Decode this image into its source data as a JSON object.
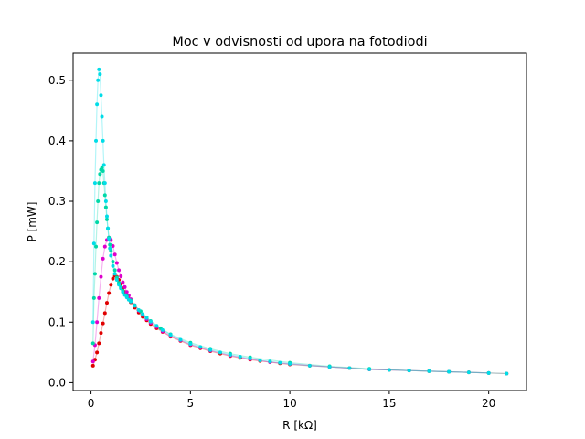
{
  "chart_data": {
    "type": "scatter",
    "title": "Moc v odvisnosti od upora na fotodiodi",
    "xlabel": "R [kΩ]",
    "ylabel": "P [mW]",
    "xlim": [
      -0.9,
      21.9
    ],
    "ylim": [
      -0.013,
      0.545
    ],
    "xticks": [
      0,
      5,
      10,
      15,
      20
    ],
    "xtick_labels": [
      "0",
      "5",
      "10",
      "15",
      "20"
    ],
    "yticks": [
      0.0,
      0.1,
      0.2,
      0.3,
      0.4,
      0.5
    ],
    "ytick_labels": [
      "0.0",
      "0.1",
      "0.2",
      "0.3",
      "0.4",
      "0.5"
    ],
    "grid": false,
    "legend": "none",
    "series": [
      {
        "color": "#e00000",
        "x": [
          0.1,
          0.2,
          0.3,
          0.4,
          0.5,
          0.6,
          0.7,
          0.8,
          0.9,
          1.0,
          1.1,
          1.2,
          1.3,
          1.4,
          1.5,
          1.6,
          1.7,
          1.8,
          1.9,
          2.0,
          2.2,
          2.4,
          2.6,
          2.8,
          3.0,
          3.3,
          3.6,
          4.0,
          4.5,
          5.0,
          5.5,
          6.0,
          6.5,
          7.0,
          7.5,
          8.0,
          8.5,
          9.0,
          9.5,
          10.0,
          11.0,
          12.0,
          13.0,
          14.0,
          15.0,
          16.0,
          17.0,
          18.0,
          19.0,
          20.0,
          20.9
        ],
        "y": [
          0.028,
          0.038,
          0.05,
          0.065,
          0.082,
          0.098,
          0.115,
          0.132,
          0.148,
          0.162,
          0.172,
          0.177,
          0.175,
          0.17,
          0.163,
          0.156,
          0.15,
          0.144,
          0.138,
          0.133,
          0.124,
          0.116,
          0.109,
          0.103,
          0.097,
          0.09,
          0.084,
          0.076,
          0.069,
          0.062,
          0.057,
          0.052,
          0.048,
          0.044,
          0.041,
          0.038,
          0.036,
          0.034,
          0.032,
          0.03,
          0.028,
          0.026,
          0.024,
          0.022,
          0.021,
          0.02,
          0.019,
          0.018,
          0.017,
          0.016,
          0.015
        ]
      },
      {
        "color": "#dd00cc",
        "x": [
          0.1,
          0.2,
          0.3,
          0.4,
          0.5,
          0.6,
          0.7,
          0.8,
          0.9,
          1.0,
          1.1,
          1.2,
          1.3,
          1.4,
          1.5,
          1.6,
          1.7,
          1.8,
          1.9,
          2.0,
          2.2,
          2.4,
          2.6,
          2.8,
          3.0,
          3.3,
          3.6,
          4.0,
          4.5,
          5.0,
          5.5,
          6.0,
          7.0,
          8.0,
          9.0,
          10.0,
          12.0,
          14.0,
          16.0,
          18.0,
          20.0
        ],
        "y": [
          0.035,
          0.062,
          0.1,
          0.14,
          0.175,
          0.205,
          0.225,
          0.236,
          0.24,
          0.236,
          0.226,
          0.212,
          0.198,
          0.186,
          0.176,
          0.166,
          0.158,
          0.15,
          0.144,
          0.138,
          0.128,
          0.119,
          0.112,
          0.105,
          0.099,
          0.092,
          0.085,
          0.077,
          0.07,
          0.063,
          0.058,
          0.053,
          0.045,
          0.039,
          0.034,
          0.031,
          0.026,
          0.022,
          0.02,
          0.018,
          0.016
        ]
      },
      {
        "color": "#00d8a8",
        "x": [
          0.1,
          0.15,
          0.2,
          0.25,
          0.3,
          0.35,
          0.4,
          0.45,
          0.5,
          0.55,
          0.6,
          0.65,
          0.7,
          0.75,
          0.8,
          0.85,
          0.9,
          0.95,
          1.0,
          1.1,
          1.2,
          1.3,
          1.4,
          1.5,
          1.6,
          1.8,
          2.0,
          2.2,
          2.5,
          2.8,
          3.0,
          3.5,
          4.0,
          5.0,
          6.0,
          7.0,
          8.0,
          10.0,
          12.0,
          14.0,
          16.0,
          18.0,
          20.0
        ],
        "y": [
          0.065,
          0.14,
          0.18,
          0.225,
          0.265,
          0.3,
          0.33,
          0.345,
          0.352,
          0.355,
          0.35,
          0.33,
          0.31,
          0.29,
          0.27,
          0.255,
          0.24,
          0.228,
          0.218,
          0.2,
          0.186,
          0.174,
          0.165,
          0.158,
          0.152,
          0.143,
          0.136,
          0.128,
          0.118,
          0.108,
          0.102,
          0.09,
          0.08,
          0.066,
          0.056,
          0.048,
          0.042,
          0.033,
          0.027,
          0.023,
          0.02,
          0.018,
          0.016
        ]
      },
      {
        "color": "#00dde8",
        "x": [
          0.1,
          0.15,
          0.2,
          0.25,
          0.3,
          0.35,
          0.4,
          0.45,
          0.5,
          0.55,
          0.6,
          0.65,
          0.7,
          0.75,
          0.8,
          0.85,
          0.9,
          0.95,
          1.0,
          1.1,
          1.2,
          1.3,
          1.4,
          1.5,
          1.6,
          1.7,
          1.8,
          1.9,
          2.0,
          2.2,
          2.4,
          2.6,
          2.8,
          3.0,
          3.3,
          3.6,
          4.0,
          4.5,
          5.0,
          5.5,
          6.0,
          6.5,
          7.0,
          7.5,
          8.0,
          8.5,
          9.0,
          9.5,
          10.0,
          11.0,
          12.0,
          13.0,
          14.0,
          15.0,
          16.0,
          17.0,
          18.0,
          19.0,
          20.0,
          20.9
        ],
        "y": [
          0.1,
          0.23,
          0.33,
          0.4,
          0.46,
          0.5,
          0.518,
          0.51,
          0.475,
          0.44,
          0.4,
          0.36,
          0.33,
          0.3,
          0.275,
          0.255,
          0.238,
          0.222,
          0.21,
          0.193,
          0.18,
          0.17,
          0.162,
          0.156,
          0.15,
          0.145,
          0.141,
          0.137,
          0.134,
          0.127,
          0.12,
          0.113,
          0.107,
          0.101,
          0.094,
          0.087,
          0.079,
          0.071,
          0.064,
          0.059,
          0.054,
          0.05,
          0.046,
          0.043,
          0.04,
          0.037,
          0.035,
          0.033,
          0.031,
          0.028,
          0.026,
          0.024,
          0.022,
          0.021,
          0.02,
          0.019,
          0.018,
          0.017,
          0.016,
          0.015
        ]
      }
    ]
  }
}
